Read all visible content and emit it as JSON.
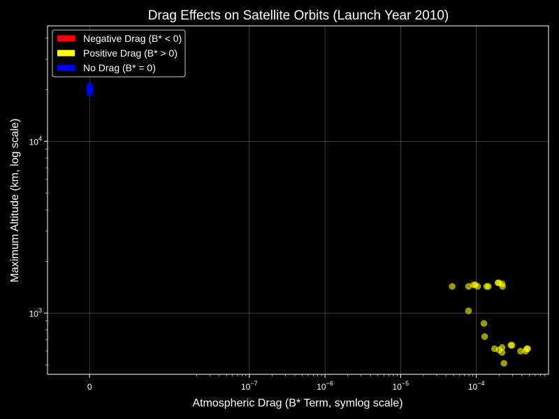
{
  "chart_data": {
    "type": "scatter",
    "title": "Drag Effects on Satellite Orbits (Launch Year 2010)",
    "xlabel": "Atmospheric Drag (B* Term, symlog scale)",
    "ylabel": "Maximum Altitude (km, log scale)",
    "x_scale": "symlog",
    "y_scale": "log",
    "xlim": [
      -5e-09,
      0.0009
    ],
    "ylim": [
      440,
      47000
    ],
    "x_ticks": [
      {
        "value": 0,
        "base": "0",
        "exp": ""
      },
      {
        "value": 1e-07,
        "base": "10",
        "exp": "−7"
      },
      {
        "value": 1e-06,
        "base": "10",
        "exp": "−6"
      },
      {
        "value": 1e-05,
        "base": "10",
        "exp": "−5"
      },
      {
        "value": 0.0001,
        "base": "10",
        "exp": "−4"
      }
    ],
    "y_ticks": [
      {
        "value": 1000,
        "base": "10",
        "exp": "3"
      },
      {
        "value": 10000,
        "base": "10",
        "exp": "4"
      }
    ],
    "grid": true,
    "legend_position": "upper-left",
    "legend": [
      {
        "label": "Negative Drag (B* < 0)",
        "color": "#ff0000"
      },
      {
        "label": "Positive Drag (B* > 0)",
        "color": "#ffff00"
      },
      {
        "label": "No Drag (B* = 0)",
        "color": "#0000ff"
      }
    ],
    "series": [
      {
        "name": "Negative Drag (B* < 0)",
        "color": "#ff0000",
        "points": []
      },
      {
        "name": "Positive Drag (B* > 0)",
        "color": "#ffff00",
        "points": [
          [
            4.8e-05,
            1430
          ],
          [
            7.9e-05,
            1430
          ],
          [
            7.9e-05,
            1030
          ],
          [
            9.2e-05,
            1460
          ],
          [
            9.7e-05,
            1460
          ],
          [
            0.000104,
            1430
          ],
          [
            0.000126,
            870
          ],
          [
            0.000129,
            730
          ],
          [
            0.000137,
            1430
          ],
          [
            0.000144,
            1430
          ],
          [
            0.000174,
            620
          ],
          [
            0.000193,
            1500
          ],
          [
            0.000198,
            1500
          ],
          [
            0.0002,
            610
          ],
          [
            0.000219,
            1480
          ],
          [
            0.000222,
            1430
          ],
          [
            0.000219,
            630
          ],
          [
            0.000219,
            590
          ],
          [
            0.000232,
            510
          ],
          [
            0.000286,
            650
          ],
          [
            0.000296,
            650
          ],
          [
            0.000384,
            600
          ],
          [
            0.000448,
            600
          ],
          [
            0.000464,
            620
          ],
          [
            0.000479,
            620
          ]
        ]
      },
      {
        "name": "No Drag (B* = 0)",
        "color": "#0000ff",
        "points": [
          [
            0,
            19300
          ],
          [
            0,
            19600
          ],
          [
            0,
            20000
          ],
          [
            0,
            20400
          ],
          [
            0,
            20800
          ],
          [
            0,
            21200
          ],
          [
            0,
            19000
          ],
          [
            0,
            20200
          ]
        ]
      }
    ]
  }
}
